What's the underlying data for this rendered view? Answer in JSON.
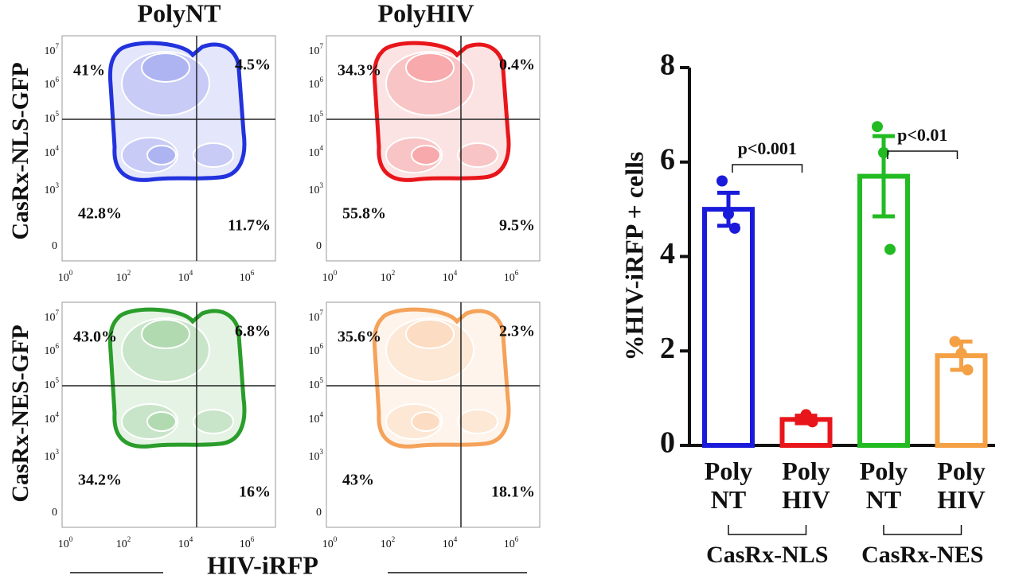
{
  "flow": {
    "col_titles": [
      "PolyNT",
      "PolyHIV"
    ],
    "row_labels": [
      "CasRx-NLS-GFP",
      "CasRx-NES-GFP"
    ],
    "x_label": "HIV-iRFP",
    "yticks": [
      {
        "base": "10",
        "exp": "7"
      },
      {
        "base": "10",
        "exp": "6"
      },
      {
        "base": "10",
        "exp": "5"
      },
      {
        "base": "10",
        "exp": "4"
      },
      {
        "base": "10",
        "exp": "3"
      }
    ],
    "y_zero": "0",
    "xticks": [
      {
        "base": "10",
        "exp": "0"
      },
      {
        "base": "10",
        "exp": "2"
      },
      {
        "base": "10",
        "exp": "4"
      },
      {
        "base": "10",
        "exp": "6"
      }
    ],
    "panels": [
      {
        "color": "#2233dd",
        "quadrants": [
          "41%",
          "4.5%",
          "42.8%",
          "11.7%"
        ]
      },
      {
        "color": "#e8161b",
        "quadrants": [
          "34.3%",
          "0.4%",
          "55.8%",
          "9.5%"
        ]
      },
      {
        "color": "#2a9d2a",
        "quadrants": [
          "43.0%",
          "6.8%",
          "34.2%",
          "16%"
        ]
      },
      {
        "color": "#f5a25a",
        "quadrants": [
          "35.6%",
          "2.3%",
          "43%",
          "18.1%"
        ]
      }
    ]
  },
  "chart_data": {
    "type": "bar",
    "y_label": "%HIV-iRFP + cells",
    "categories": [
      "Poly NT",
      "Poly HIV",
      "Poly NT",
      "Poly HIV"
    ],
    "values": [
      5.0,
      0.55,
      5.7,
      1.9
    ],
    "errors": [
      0.35,
      0.08,
      0.85,
      0.3
    ],
    "colors": [
      "#1a1adb",
      "#e8161b",
      "#22bb22",
      "#f4a044"
    ],
    "points": [
      [
        5.6,
        4.9,
        4.6
      ],
      [
        0.55,
        0.65,
        0.5
      ],
      [
        6.75,
        6.2,
        4.15
      ],
      [
        2.2,
        1.95,
        1.6
      ]
    ],
    "groups": [
      "CasRx-NLS",
      "CasRx-NES"
    ],
    "annotations": [
      "p<0.001",
      "p<0.01"
    ],
    "ylim": [
      0,
      8
    ],
    "yticks": [
      0,
      2,
      4,
      6,
      8
    ]
  }
}
